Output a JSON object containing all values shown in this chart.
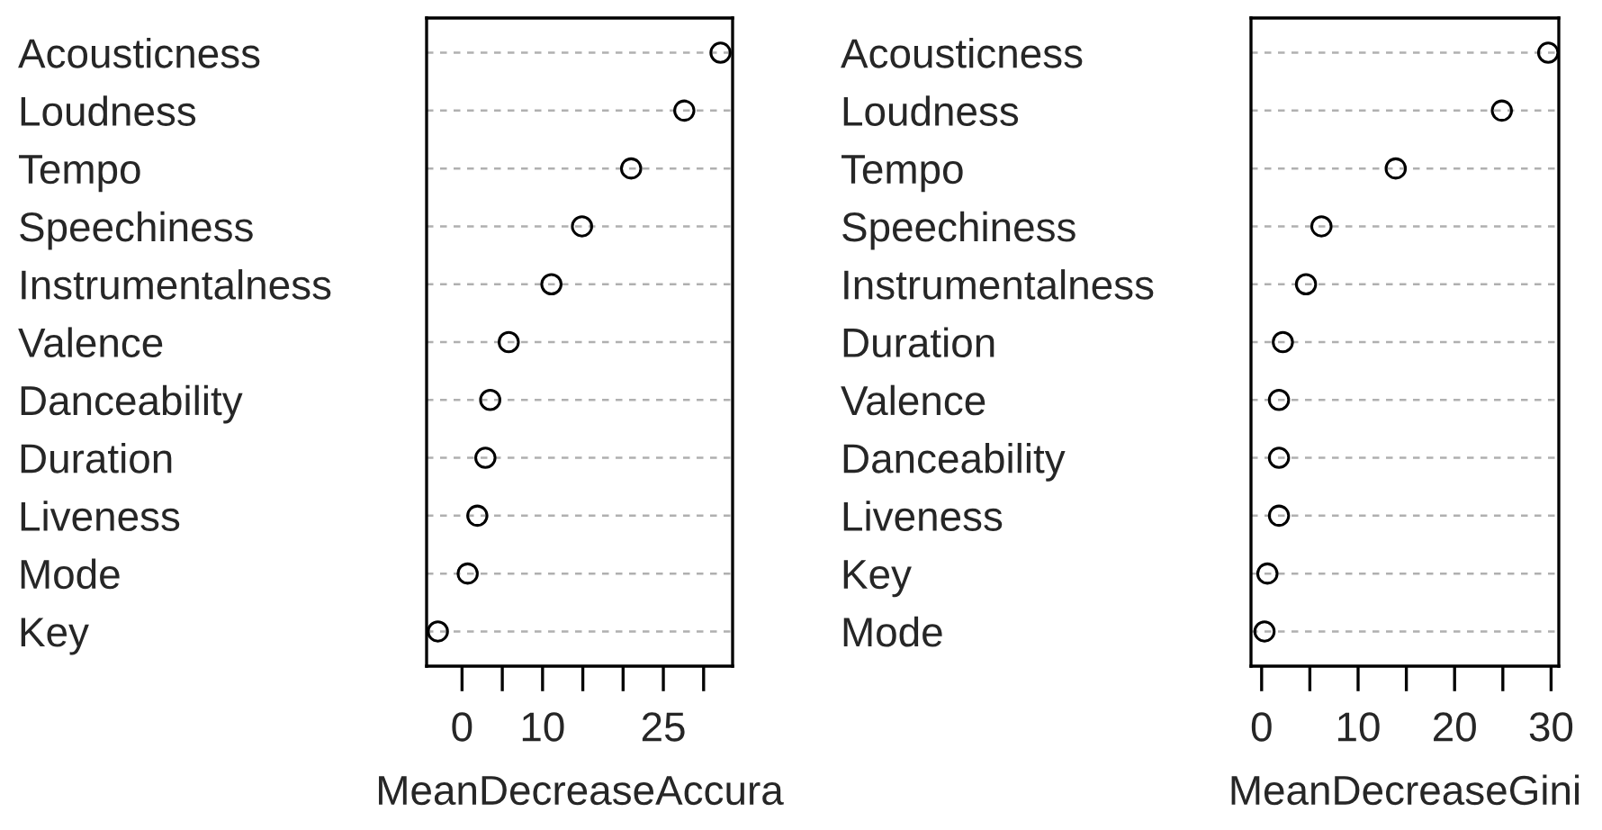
{
  "chart_data": [
    {
      "type": "scatter",
      "orientation": "horizontal",
      "xlabel": "MeanDecreaseAccura",
      "categories": [
        "Acousticness",
        "Loudness",
        "Tempo",
        "Speechiness",
        "Instrumentalness",
        "Valence",
        "Danceability",
        "Duration",
        "Liveness",
        "Mode",
        "Key"
      ],
      "series": [
        {
          "color": "#000000",
          "values": [
            32.1,
            27.6,
            21.0,
            14.9,
            11.1,
            5.8,
            3.5,
            2.9,
            1.9,
            0.7,
            -3.0
          ]
        }
      ],
      "xlim": [
        -4.4,
        33.6
      ],
      "xticks": [
        0,
        {
          "value": 5,
          "label": null
        },
        10,
        {
          "value": 15,
          "label": null
        },
        {
          "value": 20,
          "label": null
        },
        25,
        {
          "value": 30,
          "label": null
        }
      ],
      "grid": "y",
      "marker": "circle"
    },
    {
      "type": "scatter",
      "orientation": "horizontal",
      "xlabel": "MeanDecreaseGini",
      "categories": [
        "Acousticness",
        "Loudness",
        "Tempo",
        "Speechiness",
        "Instrumentalness",
        "Duration",
        "Valence",
        "Danceability",
        "Liveness",
        "Key",
        "Mode"
      ],
      "series": [
        {
          "color": "#000000",
          "values": [
            29.7,
            24.9,
            13.9,
            6.2,
            4.6,
            2.2,
            1.8,
            1.8,
            1.8,
            0.6,
            0.3
          ]
        }
      ],
      "xlim": [
        -1.1,
        30.8
      ],
      "xticks": [
        0,
        {
          "value": 5,
          "label": null
        },
        10,
        {
          "value": 15,
          "label": null
        },
        20,
        {
          "value": 25,
          "label": null
        },
        30
      ],
      "grid": "y",
      "marker": "circle"
    }
  ]
}
